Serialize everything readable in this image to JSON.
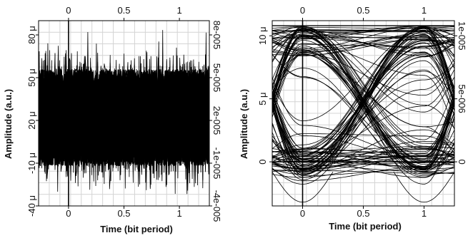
{
  "chart_data": [
    {
      "type": "line",
      "subtype": "eye-diagram",
      "title": "",
      "xlabel": "Time (bit period)",
      "ylabel": "Amplitude (a.u.)",
      "xlim": [
        -0.27,
        1.27
      ],
      "ylim": [
        -40,
        90
      ],
      "x_ticks_bottom": [
        {
          "value": 0,
          "label": "0"
        },
        {
          "value": 0.5,
          "label": "0.5"
        },
        {
          "value": 1,
          "label": "1"
        }
      ],
      "x_ticks_top": [
        {
          "value": 0,
          "label": "0"
        },
        {
          "value": 0.5,
          "label": "0.5"
        },
        {
          "value": 1,
          "label": "1"
        }
      ],
      "y_ticks_left": [
        {
          "value": -40,
          "label": "-40 μ"
        },
        {
          "value": -10,
          "label": "-10 μ"
        },
        {
          "value": 20,
          "label": "20 μ"
        },
        {
          "value": 50,
          "label": "50 μ"
        },
        {
          "value": 80,
          "label": "80 μ"
        }
      ],
      "y_ticks_right": [
        {
          "value": -40,
          "label": "-4e-005"
        },
        {
          "value": -10,
          "label": "-1e-005"
        },
        {
          "value": 20,
          "label": "2e-005"
        },
        {
          "value": 50,
          "label": "5e-005"
        },
        {
          "value": 80,
          "label": "8e-005"
        }
      ],
      "grid": true,
      "trace_color": "#000000",
      "signal": {
        "mean": 22,
        "noise_band": [
          -12,
          78
        ],
        "peak_range": [
          -32,
          84
        ]
      }
    },
    {
      "type": "line",
      "subtype": "eye-diagram",
      "title": "",
      "xlabel": "Time (bit period)",
      "ylabel": "Amplitude (a.u.)",
      "xlim": [
        -0.25,
        1.25
      ],
      "ylim": [
        -3.5,
        11.2
      ],
      "x_ticks_bottom": [
        {
          "value": 0,
          "label": "0"
        },
        {
          "value": 0.5,
          "label": "0.5"
        },
        {
          "value": 1,
          "label": "1"
        }
      ],
      "x_ticks_top": [
        {
          "value": 0,
          "label": "0"
        },
        {
          "value": 0.5,
          "label": "0.5"
        },
        {
          "value": 1,
          "label": "1"
        }
      ],
      "y_ticks_left": [
        {
          "value": 0,
          "label": "0"
        },
        {
          "value": 5,
          "label": "5 μ"
        },
        {
          "value": 10,
          "label": "10 μ"
        }
      ],
      "y_ticks_right": [
        {
          "value": 0,
          "label": "0"
        },
        {
          "value": 5,
          "label": "5e-006"
        },
        {
          "value": 10,
          "label": "1e-005"
        }
      ],
      "grid": true,
      "trace_color": "#000000",
      "levels": {
        "low": 0,
        "high": 10.8,
        "min": -3.2
      },
      "eye_center": [
        0.55,
        4.0
      ]
    }
  ]
}
